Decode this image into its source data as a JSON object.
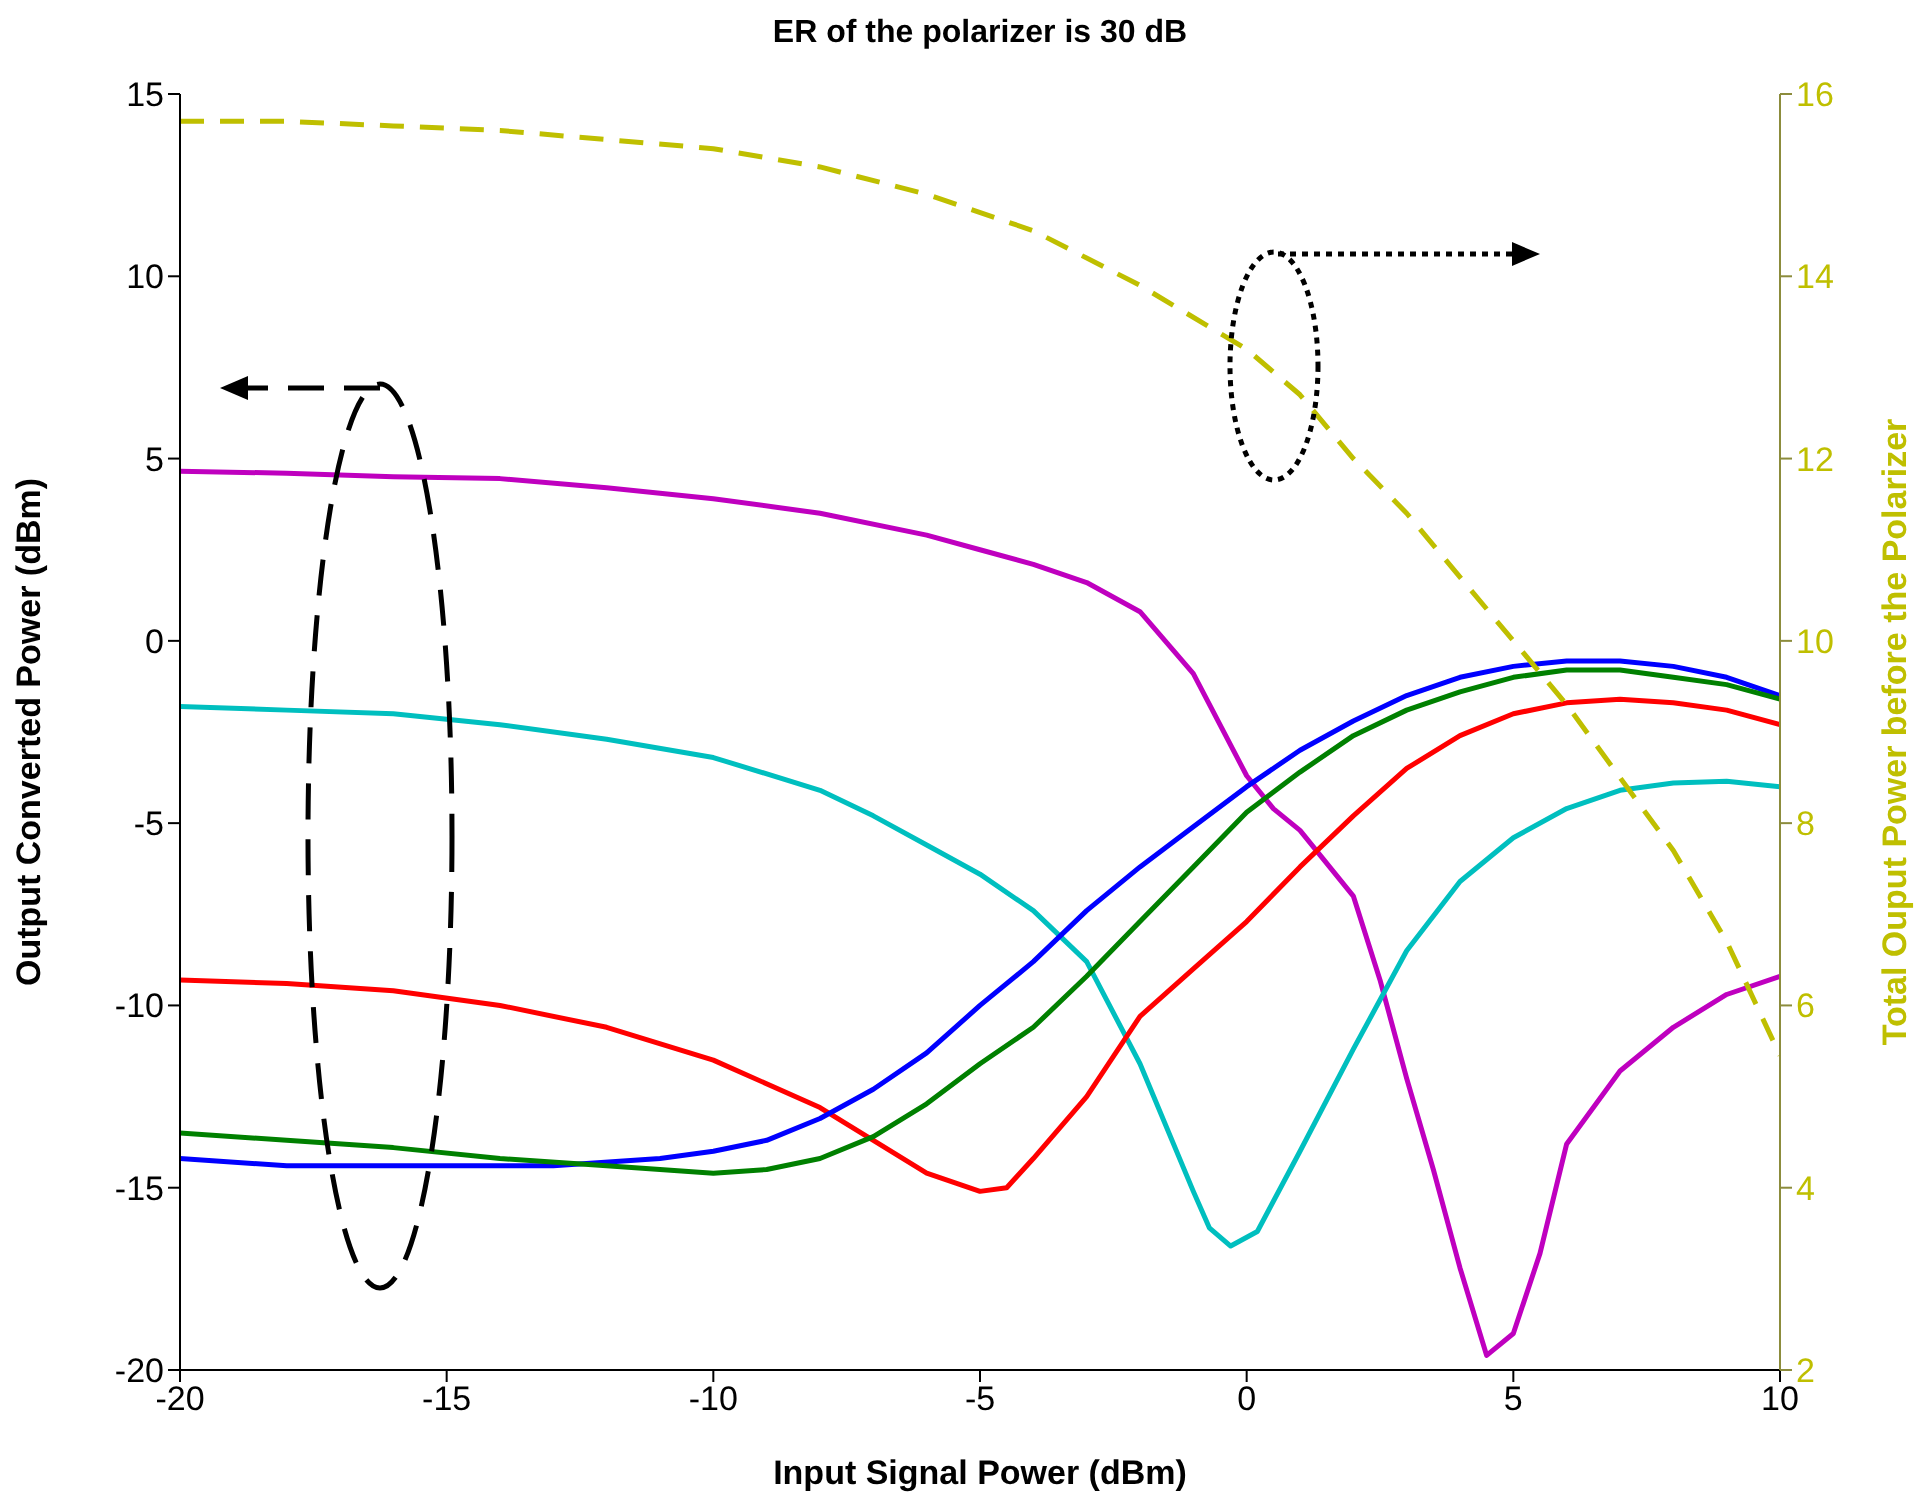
{
  "chart_data": {
    "type": "line",
    "title": "ER of the polarizer is 30 dB",
    "xlabel": "Input Signal Power (dBm)",
    "ylabel": "Output Converted Power (dBm)",
    "y2label": "Total Ouput Power before the Polarizer",
    "xlim": [
      -20,
      10
    ],
    "xticks": [
      -20,
      -15,
      -10,
      -5,
      0,
      5,
      10
    ],
    "ylim": [
      -20,
      15
    ],
    "yticks": [
      -20,
      -15,
      -10,
      -5,
      0,
      5,
      10,
      15
    ],
    "y2lim": [
      2,
      16
    ],
    "y2ticks": [
      2,
      4,
      6,
      8,
      10,
      12,
      14,
      16
    ],
    "grid": false,
    "marker": "none",
    "series": [
      {
        "color": "#bf00bf",
        "line_style": "solid",
        "x": [
          -20,
          -18,
          -16,
          -14,
          -12,
          -10,
          -8,
          -6,
          -5,
          -4,
          -3,
          -2,
          -1,
          0,
          0.5,
          1,
          2,
          2.5,
          3,
          3.5,
          4,
          4.5,
          5,
          5.5,
          6,
          7,
          8,
          9,
          10
        ],
        "values": [
          4.65,
          4.6,
          4.5,
          4.45,
          4.2,
          3.9,
          3.5,
          2.9,
          2.5,
          2.1,
          1.6,
          0.8,
          -0.9,
          -3.7,
          -4.6,
          -5.2,
          -7.0,
          -9.3,
          -12.0,
          -14.5,
          -17.2,
          -19.6,
          -19.0,
          -16.8,
          -13.8,
          -11.8,
          -10.6,
          -9.7,
          -9.2
        ]
      },
      {
        "color": "#00bfbf",
        "line_style": "solid",
        "x": [
          -20,
          -18,
          -16,
          -14,
          -12,
          -10,
          -8,
          -7,
          -6,
          -5,
          -4,
          -3,
          -2,
          -1,
          -0.7,
          -0.3,
          0.2,
          1,
          2,
          3,
          4,
          5,
          6,
          7,
          8,
          9,
          10
        ],
        "values": [
          -1.8,
          -1.9,
          -2.0,
          -2.3,
          -2.7,
          -3.2,
          -4.1,
          -4.8,
          -5.6,
          -6.4,
          -7.4,
          -8.8,
          -11.6,
          -15.1,
          -16.1,
          -16.6,
          -16.2,
          -14.0,
          -11.2,
          -8.5,
          -6.6,
          -5.4,
          -4.6,
          -4.1,
          -3.9,
          -3.85,
          -4.0
        ]
      },
      {
        "color": "#ff0000",
        "line_style": "solid",
        "x": [
          -20,
          -18,
          -16,
          -14,
          -12,
          -10,
          -8,
          -7,
          -6,
          -5,
          -4.5,
          -4,
          -3,
          -2,
          -1,
          0,
          1,
          2,
          3,
          4,
          5,
          6,
          7,
          8,
          9,
          10
        ],
        "values": [
          -9.3,
          -9.4,
          -9.6,
          -10.0,
          -10.6,
          -11.5,
          -12.8,
          -13.7,
          -14.6,
          -15.1,
          -15.0,
          -14.2,
          -12.5,
          -10.3,
          -9.0,
          -7.7,
          -6.2,
          -4.8,
          -3.5,
          -2.6,
          -2.0,
          -1.7,
          -1.6,
          -1.7,
          -1.9,
          -2.3
        ]
      },
      {
        "color": "#0000ff",
        "line_style": "solid",
        "x": [
          -20,
          -18,
          -15,
          -13,
          -11,
          -10,
          -9,
          -8,
          -7,
          -6,
          -5,
          -4,
          -3,
          -2,
          -1,
          0,
          1,
          2,
          3,
          4,
          5,
          6,
          7,
          8,
          9,
          10
        ],
        "values": [
          -14.2,
          -14.4,
          -14.4,
          -14.4,
          -14.2,
          -14.0,
          -13.7,
          -13.1,
          -12.3,
          -11.3,
          -10.0,
          -8.8,
          -7.4,
          -6.2,
          -5.1,
          -4.0,
          -3.0,
          -2.2,
          -1.5,
          -1.0,
          -0.7,
          -0.55,
          -0.55,
          -0.7,
          -1.0,
          -1.5
        ]
      },
      {
        "color": "#008000",
        "line_style": "solid",
        "x": [
          -20,
          -18,
          -16,
          -14,
          -12,
          -10,
          -9,
          -8,
          -7,
          -6,
          -5,
          -4,
          -3,
          -2,
          -1,
          0,
          1,
          2,
          3,
          4,
          5,
          6,
          7,
          8,
          9,
          10
        ],
        "values": [
          -13.5,
          -13.7,
          -13.9,
          -14.2,
          -14.4,
          -14.6,
          -14.5,
          -14.2,
          -13.6,
          -12.7,
          -11.6,
          -10.6,
          -9.2,
          -7.7,
          -6.2,
          -4.7,
          -3.6,
          -2.6,
          -1.9,
          -1.4,
          -1.0,
          -0.8,
          -0.8,
          -1.0,
          -1.2,
          -1.6
        ]
      },
      {
        "color": "#bfbf00",
        "line_style": "dashed",
        "axis": "y2",
        "x": [
          -20,
          -18,
          -16,
          -14,
          -12,
          -10,
          -8,
          -6,
          -4,
          -2,
          0,
          1,
          2,
          3,
          4,
          5,
          6,
          7,
          8,
          9,
          10
        ],
        "values": [
          15.7,
          15.7,
          15.65,
          15.6,
          15.5,
          15.4,
          15.2,
          14.9,
          14.5,
          13.9,
          13.2,
          12.7,
          12.0,
          11.4,
          10.7,
          10.0,
          9.3,
          8.5,
          7.7,
          6.7,
          5.45
        ]
      }
    ]
  }
}
